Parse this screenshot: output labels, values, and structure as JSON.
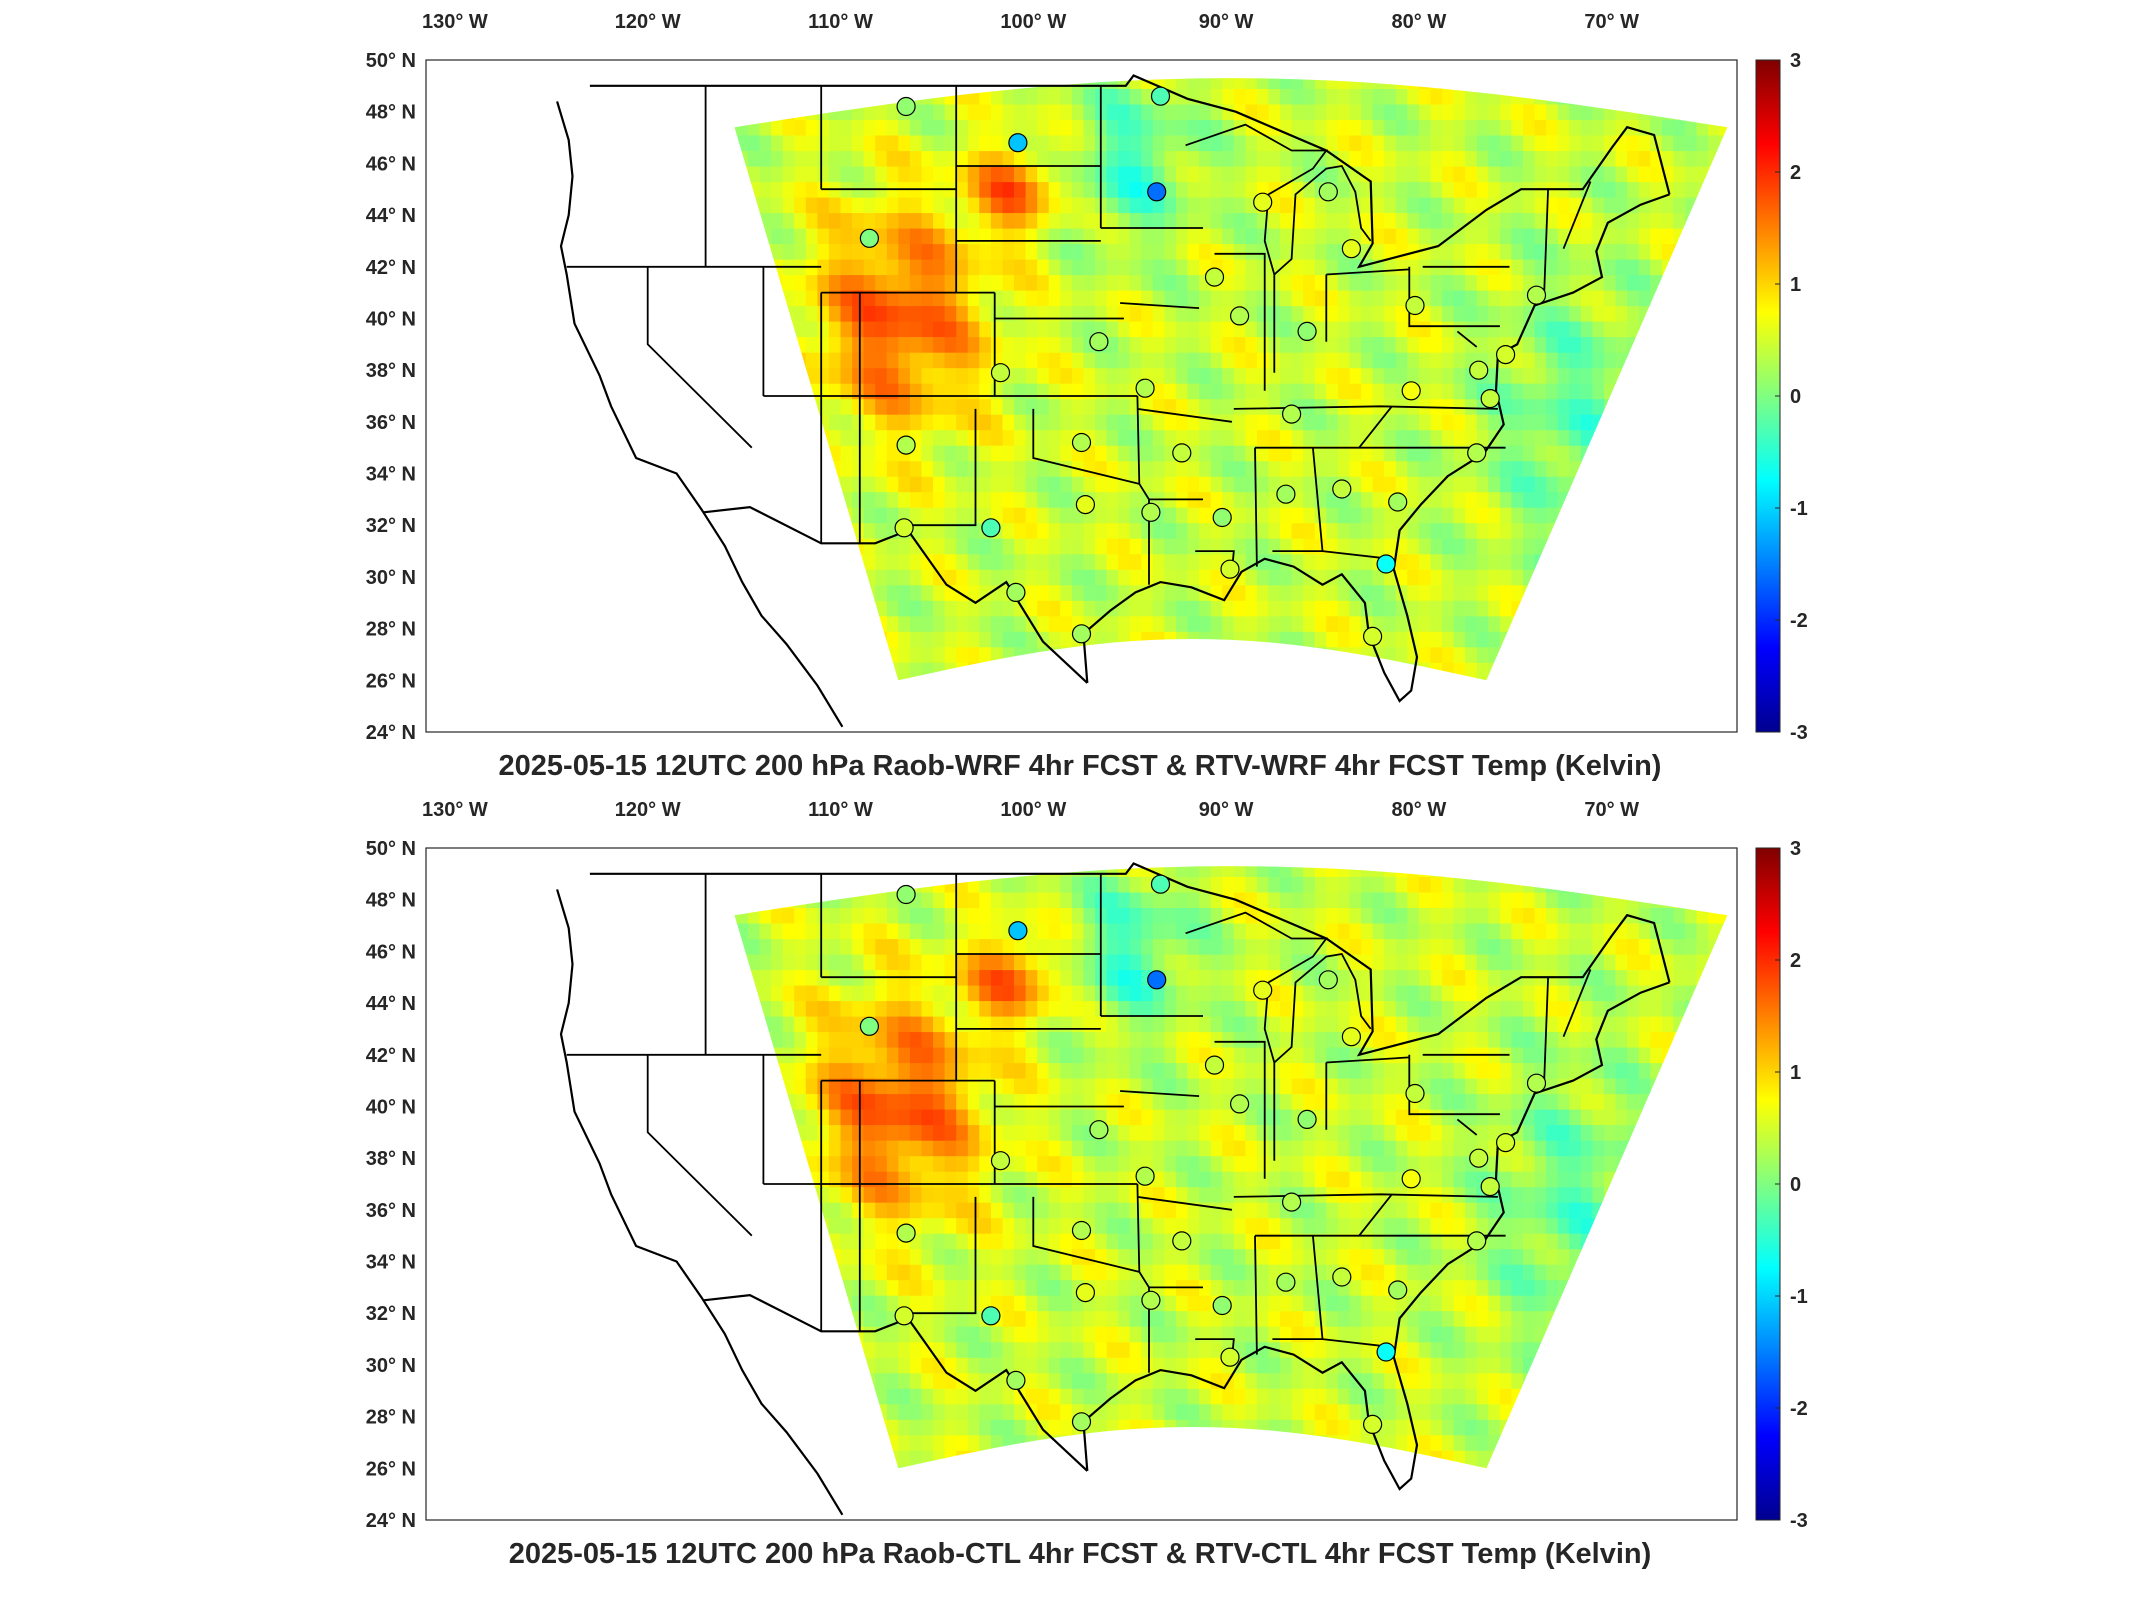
{
  "colors": {
    "jet": [
      "#00008f",
      "#0000ff",
      "#0080ff",
      "#00ffff",
      "#80ff80",
      "#ffff00",
      "#ff8000",
      "#ff0000",
      "#800000"
    ],
    "land_fill": "#ffffff",
    "border": "#000000"
  },
  "lon_labels": [
    {
      "lon": -130,
      "text": "130",
      "suffix": "W"
    },
    {
      "lon": -120,
      "text": "120",
      "suffix": "W"
    },
    {
      "lon": -110,
      "text": "110",
      "suffix": "W"
    },
    {
      "lon": -100,
      "text": "100",
      "suffix": "W"
    },
    {
      "lon": -90,
      "text": "90",
      "suffix": "W"
    },
    {
      "lon": -80,
      "text": "80",
      "suffix": "W"
    },
    {
      "lon": -70,
      "text": "70",
      "suffix": "W"
    }
  ],
  "lat_labels": [
    {
      "lat": 50,
      "text": "50",
      "suffix": "N"
    },
    {
      "lat": 48,
      "text": "48",
      "suffix": "N"
    },
    {
      "lat": 46,
      "text": "46",
      "suffix": "N"
    },
    {
      "lat": 44,
      "text": "44",
      "suffix": "N"
    },
    {
      "lat": 42,
      "text": "42",
      "suffix": "N"
    },
    {
      "lat": 40,
      "text": "40",
      "suffix": "N"
    },
    {
      "lat": 38,
      "text": "38",
      "suffix": "N"
    },
    {
      "lat": 36,
      "text": "36",
      "suffix": "N"
    },
    {
      "lat": 34,
      "text": "34",
      "suffix": "N"
    },
    {
      "lat": 32,
      "text": "32",
      "suffix": "N"
    },
    {
      "lat": 30,
      "text": "30",
      "suffix": "N"
    },
    {
      "lat": 28,
      "text": "28",
      "suffix": "N"
    },
    {
      "lat": 26,
      "text": "26",
      "suffix": "N"
    },
    {
      "lat": 24,
      "text": "24",
      "suffix": "N"
    }
  ],
  "colorbar": {
    "min": -3,
    "max": 3,
    "ticks": [
      {
        "value": 3,
        "text": "3"
      },
      {
        "value": 2,
        "text": "2"
      },
      {
        "value": 1,
        "text": "1"
      },
      {
        "value": 0,
        "text": "0"
      },
      {
        "value": -1,
        "text": "-1"
      },
      {
        "value": -2,
        "text": "-2"
      },
      {
        "value": -3,
        "text": "-3"
      }
    ]
  },
  "panels": [
    {
      "title": "2025-05-15 12UTC 200 hPa Raob-WRF 4hr FCST & RTV-WRF 4hr FCST Temp (Kelvin)",
      "stations": [
        {
          "lon": -106.6,
          "lat": 48.2,
          "value": 0.1
        },
        {
          "lon": -100.8,
          "lat": 46.8,
          "value": -1.1
        },
        {
          "lon": -93.4,
          "lat": 48.6,
          "value": -0.3
        },
        {
          "lon": -93.6,
          "lat": 44.9,
          "value": -1.6
        },
        {
          "lon": -108.5,
          "lat": 43.1,
          "value": 0.0
        },
        {
          "lon": -88.1,
          "lat": 44.5,
          "value": 0.6
        },
        {
          "lon": -84.7,
          "lat": 44.9,
          "value": 0.2
        },
        {
          "lon": -90.6,
          "lat": 41.6,
          "value": 0.4
        },
        {
          "lon": -83.5,
          "lat": 42.7,
          "value": 0.6
        },
        {
          "lon": -89.3,
          "lat": 40.1,
          "value": 0.3
        },
        {
          "lon": -80.2,
          "lat": 40.5,
          "value": 0.4
        },
        {
          "lon": -85.8,
          "lat": 39.5,
          "value": 0.1
        },
        {
          "lon": -96.6,
          "lat": 39.1,
          "value": 0.2
        },
        {
          "lon": -101.7,
          "lat": 37.9,
          "value": 0.4
        },
        {
          "lon": -94.2,
          "lat": 37.3,
          "value": 0.3
        },
        {
          "lon": -80.4,
          "lat": 37.2,
          "value": 0.7
        },
        {
          "lon": -86.6,
          "lat": 36.3,
          "value": 0.3
        },
        {
          "lon": -106.6,
          "lat": 35.1,
          "value": 0.3
        },
        {
          "lon": -97.5,
          "lat": 35.2,
          "value": 0.3
        },
        {
          "lon": -92.3,
          "lat": 34.8,
          "value": 0.4
        },
        {
          "lon": -77.0,
          "lat": 34.8,
          "value": 0.3
        },
        {
          "lon": -97.3,
          "lat": 32.8,
          "value": 0.6
        },
        {
          "lon": -84.0,
          "lat": 33.4,
          "value": 0.4
        },
        {
          "lon": -86.9,
          "lat": 33.2,
          "value": 0.2
        },
        {
          "lon": -93.9,
          "lat": 32.5,
          "value": 0.3
        },
        {
          "lon": -90.2,
          "lat": 32.3,
          "value": 0.1
        },
        {
          "lon": -81.1,
          "lat": 32.9,
          "value": 0.2
        },
        {
          "lon": -106.7,
          "lat": 31.9,
          "value": 0.5
        },
        {
          "lon": -102.2,
          "lat": 31.9,
          "value": -0.3
        },
        {
          "lon": -100.9,
          "lat": 29.4,
          "value": 0.2
        },
        {
          "lon": -97.5,
          "lat": 27.8,
          "value": 0.2
        },
        {
          "lon": -81.7,
          "lat": 30.5,
          "value": -0.7
        },
        {
          "lon": -82.4,
          "lat": 27.7,
          "value": 0.5
        },
        {
          "lon": -89.8,
          "lat": 30.3,
          "value": 0.5
        },
        {
          "lon": -73.9,
          "lat": 40.9,
          "value": 0.3
        },
        {
          "lon": -76.9,
          "lat": 38.0,
          "value": 0.4
        },
        {
          "lon": -75.5,
          "lat": 38.6,
          "value": 0.5
        },
        {
          "lon": -76.3,
          "lat": 36.9,
          "value": 0.4
        }
      ]
    },
    {
      "title": "2025-05-15 12UTC 200 hPa Raob-CTL 4hr FCST & RTV-CTL 4hr FCST Temp (Kelvin)",
      "stations": [
        {
          "lon": -106.6,
          "lat": 48.2,
          "value": 0.1
        },
        {
          "lon": -100.8,
          "lat": 46.8,
          "value": -1.1
        },
        {
          "lon": -93.4,
          "lat": 48.6,
          "value": -0.3
        },
        {
          "lon": -93.6,
          "lat": 44.9,
          "value": -1.6
        },
        {
          "lon": -108.5,
          "lat": 43.1,
          "value": 0.0
        },
        {
          "lon": -88.1,
          "lat": 44.5,
          "value": 0.6
        },
        {
          "lon": -84.7,
          "lat": 44.9,
          "value": 0.2
        },
        {
          "lon": -90.6,
          "lat": 41.6,
          "value": 0.4
        },
        {
          "lon": -83.5,
          "lat": 42.7,
          "value": 0.6
        },
        {
          "lon": -89.3,
          "lat": 40.1,
          "value": 0.3
        },
        {
          "lon": -80.2,
          "lat": 40.5,
          "value": 0.4
        },
        {
          "lon": -85.8,
          "lat": 39.5,
          "value": 0.1
        },
        {
          "lon": -96.6,
          "lat": 39.1,
          "value": 0.2
        },
        {
          "lon": -101.7,
          "lat": 37.9,
          "value": 0.4
        },
        {
          "lon": -94.2,
          "lat": 37.3,
          "value": 0.3
        },
        {
          "lon": -80.4,
          "lat": 37.2,
          "value": 0.7
        },
        {
          "lon": -86.6,
          "lat": 36.3,
          "value": 0.3
        },
        {
          "lon": -106.6,
          "lat": 35.1,
          "value": 0.3
        },
        {
          "lon": -97.5,
          "lat": 35.2,
          "value": 0.3
        },
        {
          "lon": -92.3,
          "lat": 34.8,
          "value": 0.4
        },
        {
          "lon": -77.0,
          "lat": 34.8,
          "value": 0.3
        },
        {
          "lon": -97.3,
          "lat": 32.8,
          "value": 0.6
        },
        {
          "lon": -84.0,
          "lat": 33.4,
          "value": 0.4
        },
        {
          "lon": -86.9,
          "lat": 33.2,
          "value": 0.2
        },
        {
          "lon": -93.9,
          "lat": 32.5,
          "value": 0.3
        },
        {
          "lon": -90.2,
          "lat": 32.3,
          "value": 0.1
        },
        {
          "lon": -81.1,
          "lat": 32.9,
          "value": 0.2
        },
        {
          "lon": -106.7,
          "lat": 31.9,
          "value": 0.5
        },
        {
          "lon": -102.2,
          "lat": 31.9,
          "value": -0.3
        },
        {
          "lon": -100.9,
          "lat": 29.4,
          "value": 0.2
        },
        {
          "lon": -97.5,
          "lat": 27.8,
          "value": 0.2
        },
        {
          "lon": -81.7,
          "lat": 30.5,
          "value": -0.7
        },
        {
          "lon": -82.4,
          "lat": 27.7,
          "value": 0.5
        },
        {
          "lon": -89.8,
          "lat": 30.3,
          "value": 0.5
        },
        {
          "lon": -73.9,
          "lat": 40.9,
          "value": 0.3
        },
        {
          "lon": -76.9,
          "lat": 38.0,
          "value": 0.4
        },
        {
          "lon": -75.5,
          "lat": 38.6,
          "value": 0.5
        },
        {
          "lon": -76.3,
          "lat": 36.9,
          "value": 0.4
        }
      ]
    }
  ]
}
